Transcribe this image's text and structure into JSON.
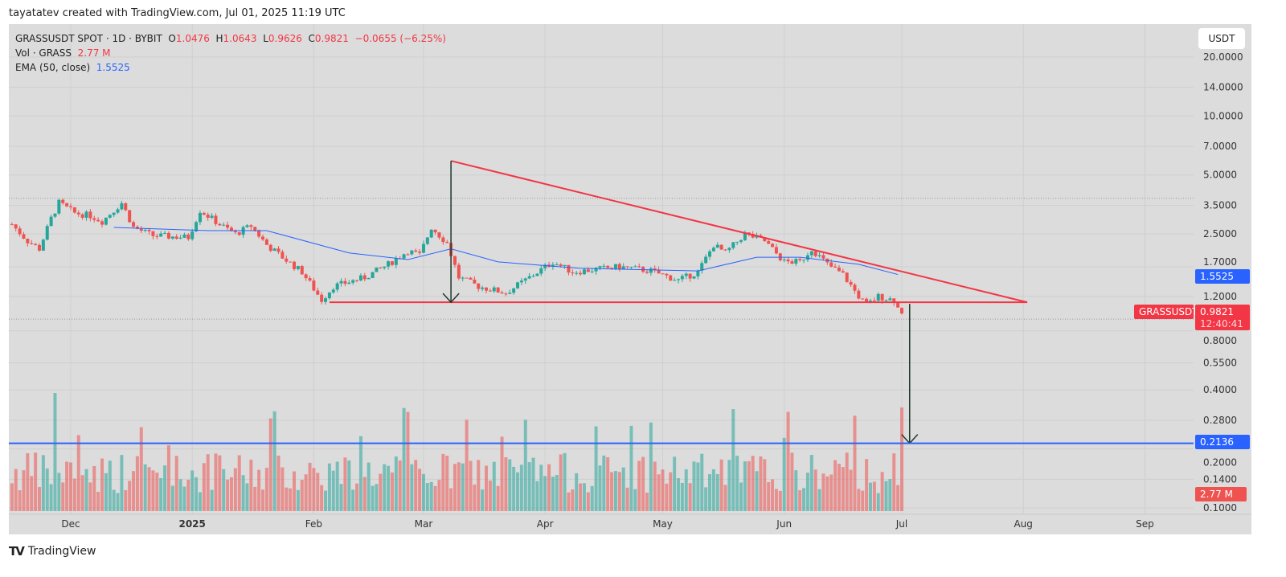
{
  "header": {
    "credit": "tayatatev created with TradingView.com, Jul 01, 2025 11:19 UTC"
  },
  "legend": {
    "symbol": "GRASSUSDT SPOT · 1D · BYBIT",
    "o_label": "O",
    "o": "1.0476",
    "h_label": "H",
    "h": "1.0643",
    "l_label": "L",
    "l": "0.9626",
    "c_label": "C",
    "c": "0.9821",
    "change": "−0.0655 (−6.25%)",
    "vol_label": "Vol · GRASS",
    "vol": "2.77 M",
    "ema_label": "EMA (50, close)",
    "ema": "1.5525"
  },
  "currency_button": "USDT",
  "footer": {
    "brand": "TradingView"
  },
  "colors": {
    "up": "#26a69a",
    "down": "#ef5350",
    "ema": "#2962ff",
    "trendline": "#f23645",
    "target": "#2962ff",
    "arrow": "#1e3a2a",
    "background": "#dcdcdc"
  },
  "chart_data": {
    "type": "candlestick",
    "y_scale": "log",
    "ylim": [
      0.1,
      20
    ],
    "y_ticks": [
      "20.0000",
      "14.0000",
      "10.0000",
      "7.0000",
      "5.0000",
      "3.5000",
      "2.5000",
      "1.7000",
      "1.2000",
      "0.8000",
      "0.5500",
      "0.4000",
      "0.2800",
      "0.2000",
      "0.1400",
      "0.1000"
    ],
    "x_ticks": [
      {
        "label": "Dec",
        "date": "2024-12-01"
      },
      {
        "label": "2025",
        "date": "2025-01-01",
        "bold": true
      },
      {
        "label": "Feb",
        "date": "2025-02-01"
      },
      {
        "label": "Mar",
        "date": "2025-03-01"
      },
      {
        "label": "Apr",
        "date": "2025-04-01"
      },
      {
        "label": "May",
        "date": "2025-05-01"
      },
      {
        "label": "Jun",
        "date": "2025-06-01"
      },
      {
        "label": "Jul",
        "date": "2025-07-01"
      },
      {
        "label": "Aug",
        "date": "2025-08-01"
      },
      {
        "label": "Sep",
        "date": "2025-09-01"
      }
    ],
    "close_path": [
      [
        "2024-11-16",
        2.8
      ],
      [
        "2024-11-20",
        2.3
      ],
      [
        "2024-11-23",
        2.1
      ],
      [
        "2024-11-26",
        3.0
      ],
      [
        "2024-11-28",
        3.6
      ],
      [
        "2024-12-02",
        3.2
      ],
      [
        "2024-12-06",
        3.1
      ],
      [
        "2024-12-09",
        2.9
      ],
      [
        "2024-12-14",
        3.6
      ],
      [
        "2024-12-17",
        2.7
      ],
      [
        "2024-12-22",
        2.45
      ],
      [
        "2024-12-31",
        2.4
      ],
      [
        "2025-01-03",
        3.3
      ],
      [
        "2025-01-08",
        2.8
      ],
      [
        "2025-01-12",
        2.5
      ],
      [
        "2025-01-16",
        2.75
      ],
      [
        "2025-01-20",
        2.2
      ],
      [
        "2025-01-24",
        1.9
      ],
      [
        "2025-01-29",
        1.6
      ],
      [
        "2025-02-03",
        1.15
      ],
      [
        "2025-02-06",
        1.35
      ],
      [
        "2025-02-14",
        1.5
      ],
      [
        "2025-02-20",
        1.75
      ],
      [
        "2025-02-25",
        2.05
      ],
      [
        "2025-02-28",
        1.95
      ],
      [
        "2025-03-03",
        2.7
      ],
      [
        "2025-03-07",
        2.25
      ],
      [
        "2025-03-10",
        1.5
      ],
      [
        "2025-03-15",
        1.35
      ],
      [
        "2025-03-22",
        1.25
      ],
      [
        "2025-03-28",
        1.5
      ],
      [
        "2025-04-03",
        1.8
      ],
      [
        "2025-04-08",
        1.6
      ],
      [
        "2025-04-20",
        1.7
      ],
      [
        "2025-04-28",
        1.62
      ],
      [
        "2025-05-05",
        1.45
      ],
      [
        "2025-05-10",
        1.6
      ],
      [
        "2025-05-14",
        2.2
      ],
      [
        "2025-05-17",
        2.0
      ],
      [
        "2025-05-22",
        2.5
      ],
      [
        "2025-05-27",
        2.3
      ],
      [
        "2025-06-01",
        1.8
      ],
      [
        "2025-06-05",
        1.8
      ],
      [
        "2025-06-08",
        2.1
      ],
      [
        "2025-06-12",
        1.75
      ],
      [
        "2025-06-16",
        1.55
      ],
      [
        "2025-06-20",
        1.2
      ],
      [
        "2025-06-22",
        1.08
      ],
      [
        "2025-06-25",
        1.2
      ],
      [
        "2025-06-29",
        1.15
      ],
      [
        "2025-06-30",
        1.0476
      ],
      [
        "2025-07-01",
        0.9821
      ]
    ],
    "last_candle": {
      "date": "2025-07-01",
      "open": 1.0476,
      "high": 1.0643,
      "low": 0.9626,
      "close": 0.9821
    },
    "ema_path": [
      [
        "2024-12-12",
        2.7
      ],
      [
        "2025-01-05",
        2.6
      ],
      [
        "2025-01-20",
        2.6
      ],
      [
        "2025-02-10",
        2.0
      ],
      [
        "2025-02-25",
        1.85
      ],
      [
        "2025-03-08",
        2.1
      ],
      [
        "2025-03-20",
        1.8
      ],
      [
        "2025-04-10",
        1.67
      ],
      [
        "2025-05-10",
        1.62
      ],
      [
        "2025-05-25",
        1.9
      ],
      [
        "2025-06-05",
        1.9
      ],
      [
        "2025-06-20",
        1.75
      ],
      [
        "2025-06-30",
        1.5525
      ]
    ],
    "annotations": {
      "descending_trendline": [
        [
          "2025-03-08",
          5.9
        ],
        [
          "2025-08-02",
          1.12
        ]
      ],
      "support_line": [
        [
          "2025-02-05",
          1.12
        ],
        [
          "2025-08-02",
          1.12
        ]
      ],
      "measure_arrow": [
        [
          "2025-03-08",
          5.9
        ],
        [
          "2025-03-08",
          1.12
        ]
      ],
      "target_arrow": [
        [
          "2025-07-03",
          1.1
        ],
        [
          "2025-07-03",
          0.2136
        ]
      ],
      "target_level": 0.2136,
      "dotted_level": 3.8
    },
    "price_labels": {
      "symbol": "GRASSUSDT",
      "last": "0.9821",
      "countdown": "12:40:41",
      "ema": "1.5525",
      "target": "0.2136",
      "volume": "2.77 M"
    }
  }
}
